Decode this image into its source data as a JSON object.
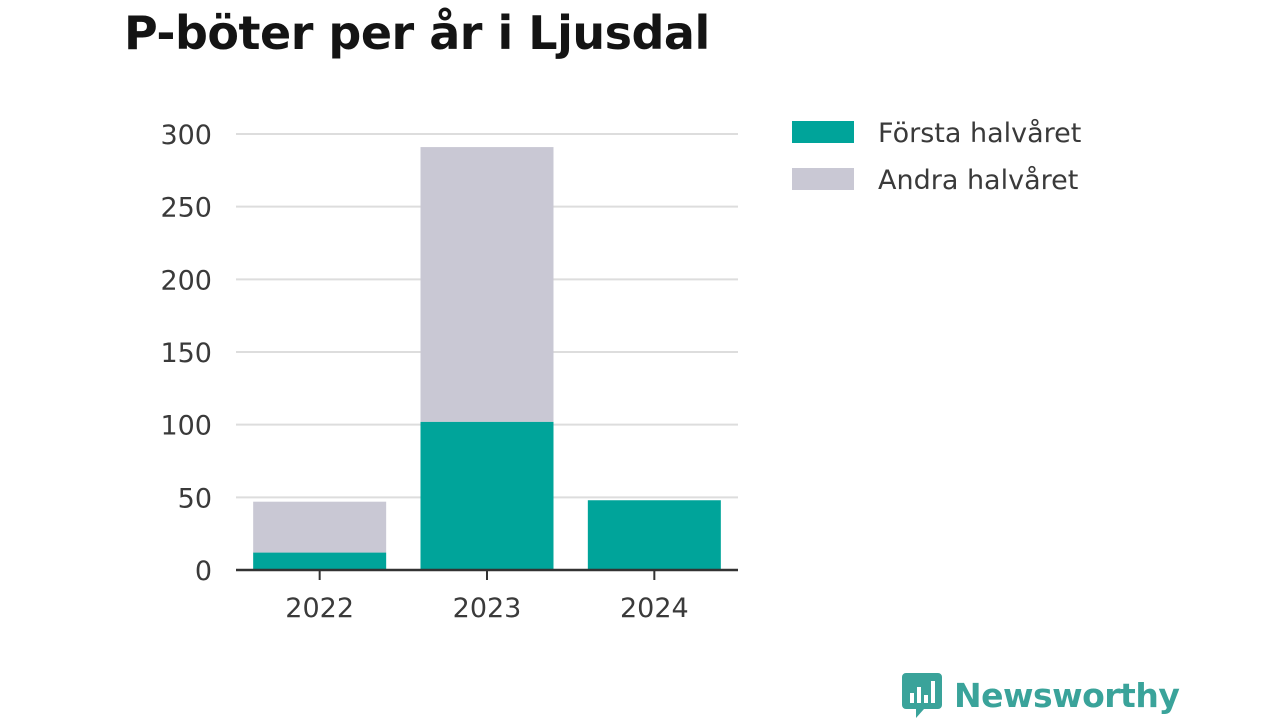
{
  "chart_data": {
    "type": "bar",
    "stacked": true,
    "title": "P-böter per år i Ljusdal",
    "categories": [
      "2022",
      "2023",
      "2024"
    ],
    "series": [
      {
        "name": "Första halvåret",
        "color": "#00a49a",
        "values": [
          12,
          102,
          48
        ]
      },
      {
        "name": "Andra halvåret",
        "color": "#c9c8d4",
        "values": [
          35,
          189,
          0
        ]
      }
    ],
    "ylim": [
      0,
      300
    ],
    "yticks": [
      "0",
      "50",
      "100",
      "150",
      "200",
      "250",
      "300"
    ],
    "grid": true,
    "legend": "top-right",
    "xlabel": "",
    "ylabel": ""
  },
  "brand": {
    "name": "Newsworthy",
    "icon": "bar-chart-speech-bubble-icon",
    "color": "#3aa39a"
  }
}
